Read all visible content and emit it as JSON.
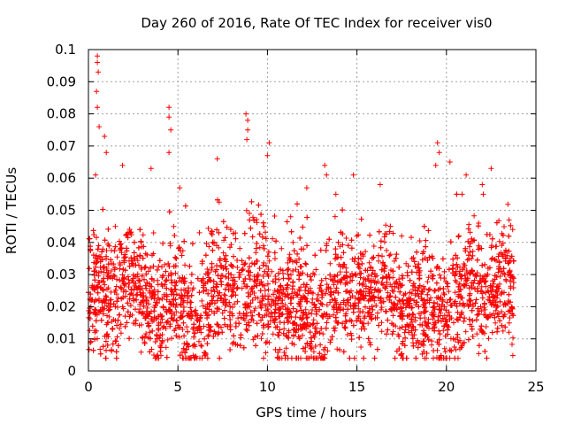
{
  "chart_data": {
    "type": "scatter",
    "title": "Day 260 of 2016, Rate Of TEC Index for receiver vis0",
    "xlabel": "GPS time / hours",
    "ylabel": "ROTI / TECUs",
    "xlim": [
      0,
      25
    ],
    "ylim": [
      0,
      0.1
    ],
    "xticks": [
      0,
      5,
      10,
      15,
      20,
      25
    ],
    "xtick_labels": [
      "0",
      "5",
      "10",
      "15",
      "20",
      "25"
    ],
    "yticks": [
      0,
      0.01,
      0.02,
      0.03,
      0.04,
      0.05,
      0.06,
      0.07,
      0.08,
      0.09,
      0.1
    ],
    "ytick_labels": [
      "0",
      "0.01",
      "0.02",
      "0.03",
      "0.04",
      "0.05",
      "0.06",
      "0.07",
      "0.08",
      "0.09",
      "0.1"
    ],
    "grid": true,
    "marker": "+",
    "color": "#ff0000",
    "series": [
      {
        "name": "ROTI",
        "data_range_hours": [
          0,
          23.8
        ],
        "typical_band": [
          0.005,
          0.05
        ],
        "points": [
          [
            0.5,
            0.098
          ],
          [
            0.5,
            0.096
          ],
          [
            0.55,
            0.093
          ],
          [
            0.45,
            0.087
          ],
          [
            0.5,
            0.082
          ],
          [
            0.6,
            0.076
          ],
          [
            0.9,
            0.073
          ],
          [
            1.0,
            0.068
          ],
          [
            0.4,
            0.061
          ],
          [
            1.9,
            0.064
          ],
          [
            3.5,
            0.063
          ],
          [
            4.5,
            0.082
          ],
          [
            4.5,
            0.079
          ],
          [
            4.6,
            0.075
          ],
          [
            4.5,
            0.068
          ],
          [
            5.1,
            0.057
          ],
          [
            7.2,
            0.066
          ],
          [
            8.8,
            0.08
          ],
          [
            8.9,
            0.078
          ],
          [
            8.9,
            0.075
          ],
          [
            8.85,
            0.072
          ],
          [
            10.1,
            0.071
          ],
          [
            10.0,
            0.067
          ],
          [
            12.2,
            0.057
          ],
          [
            13.2,
            0.064
          ],
          [
            13.3,
            0.061
          ],
          [
            14.8,
            0.061
          ],
          [
            16.3,
            0.058
          ],
          [
            19.5,
            0.071
          ],
          [
            19.6,
            0.068
          ],
          [
            19.4,
            0.064
          ],
          [
            20.2,
            0.065
          ],
          [
            21.1,
            0.061
          ],
          [
            22.5,
            0.063
          ],
          [
            22.0,
            0.058
          ],
          [
            23.5,
            0.047
          ],
          [
            23.7,
            0.044
          ],
          [
            1.5,
            0.045
          ],
          [
            6.2,
            0.043
          ],
          [
            11.3,
            0.048
          ],
          [
            17.5,
            0.042
          ],
          [
            21.8,
            0.046
          ]
        ]
      }
    ]
  }
}
